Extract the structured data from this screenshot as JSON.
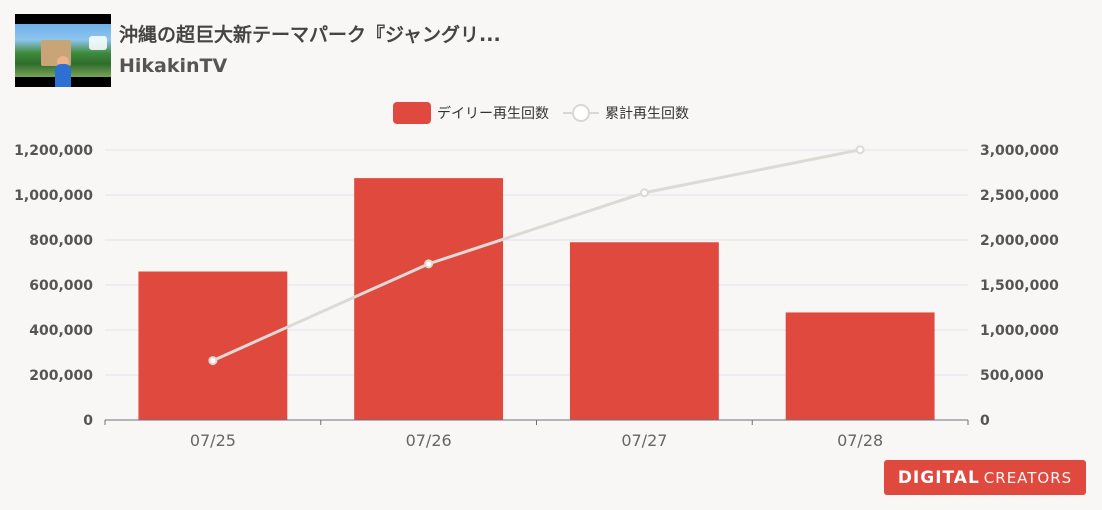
{
  "header": {
    "video_title": "沖縄の超巨大新テーマパーク『ジャングリ...",
    "channel": "HikakinTV"
  },
  "brand": {
    "part1": "DIGITAL",
    "part2": "CREATORS"
  },
  "colors": {
    "bar": "#e0493e",
    "line": "#dcdad7",
    "grid": "#dfe3ef",
    "axis": "#6e7079",
    "background": "#f8f7f5"
  },
  "chart_data": {
    "type": "bar",
    "categories": [
      "07/25",
      "07/26",
      "07/27",
      "07/28"
    ],
    "series": [
      {
        "name": "デイリー再生回数",
        "type": "bar",
        "axis": "left",
        "values": [
          660000,
          1075000,
          790000,
          478000
        ]
      },
      {
        "name": "累計再生回数",
        "type": "line",
        "axis": "right",
        "values": [
          660000,
          1735000,
          2525000,
          3003000
        ]
      }
    ],
    "ylim_left": [
      0,
      1200000
    ],
    "ylim_right": [
      0,
      3000000
    ],
    "yticks_left": [
      "0",
      "200,000",
      "400,000",
      "600,000",
      "800,000",
      "1,000,000",
      "1,200,000"
    ],
    "yticks_right": [
      "0",
      "500,000",
      "1,000,000",
      "1,500,000",
      "2,000,000",
      "2,500,000",
      "3,000,000"
    ],
    "grid": true,
    "legend_position": "top-center"
  }
}
